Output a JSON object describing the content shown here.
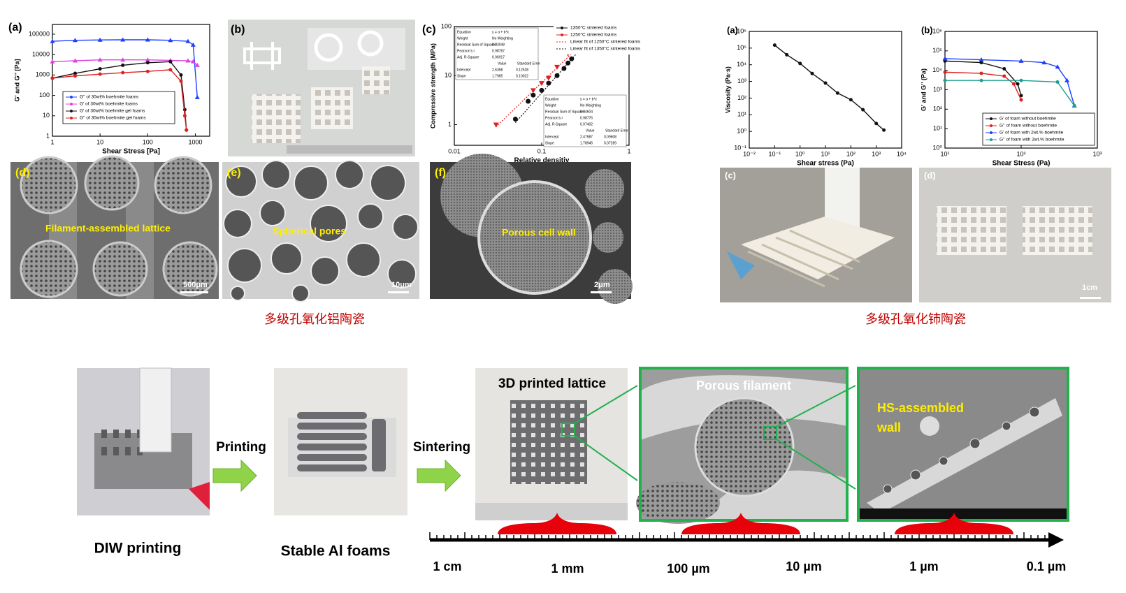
{
  "chart_data": [
    {
      "type": "line",
      "xlabel": "Shear Stress [Pa]",
      "ylabel": "G' and G'' [Pa]",
      "xscale": "log",
      "yscale": "log",
      "xlim": [
        1,
        2000
      ],
      "ylim": [
        1,
        300000
      ],
      "xticks": [
        1,
        10,
        100,
        1000
      ],
      "yticks": [
        1,
        10,
        100,
        1000,
        10000,
        100000
      ],
      "legend": "lower left",
      "series": [
        {
          "name": "G'' of 30wt% boehmite foams",
          "color": "#1f3fff",
          "marker": "triangle",
          "x": [
            1,
            3,
            10,
            30,
            100,
            300,
            700,
            900,
            1100
          ],
          "values": [
            45000,
            50000,
            52000,
            53000,
            53000,
            50000,
            45000,
            30000,
            80
          ]
        },
        {
          "name": "G' of 30wt% boehmite foams",
          "color": "#e040e0",
          "marker": "triangle",
          "x": [
            1,
            3,
            10,
            30,
            100,
            300,
            700,
            900,
            1100
          ],
          "values": [
            4500,
            5000,
            5500,
            5500,
            5500,
            5200,
            5000,
            4500,
            3000
          ]
        },
        {
          "name": "G' of 30wt% boehmite gel foams",
          "color": "#111111",
          "marker": "circle",
          "x": [
            1,
            3,
            10,
            30,
            100,
            300,
            500,
            600,
            650
          ],
          "values": [
            700,
            1200,
            2000,
            3000,
            4000,
            4500,
            1000,
            20,
            2
          ]
        },
        {
          "name": "G'' of 30wt% boehmite gel foams",
          "color": "#e02020",
          "marker": "circle",
          "x": [
            1,
            3,
            10,
            30,
            100,
            300,
            500,
            600,
            650
          ],
          "values": [
            700,
            900,
            1100,
            1300,
            1500,
            1800,
            500,
            10,
            2
          ]
        }
      ]
    },
    {
      "type": "scatter",
      "xlabel": "Relative densitiy",
      "ylabel": "Compressive strength (MPa)",
      "xscale": "log",
      "yscale": "log",
      "xlim": [
        0.01,
        1
      ],
      "ylim": [
        0.38,
        100
      ],
      "xticks": [
        0.01,
        0.1,
        1
      ],
      "yticks": [
        1,
        10,
        100
      ],
      "legend": "upper right",
      "series": [
        {
          "name": "1350°C sintered foams",
          "color": "#111111",
          "marker": "circle",
          "x": [
            0.05,
            0.07,
            0.08,
            0.1,
            0.12,
            0.15,
            0.18,
            0.2,
            0.22
          ],
          "values": [
            1.3,
            3,
            4,
            5,
            7,
            10,
            14,
            18,
            22
          ]
        },
        {
          "name": "1250°C sintered foams",
          "color": "#e02020",
          "marker": "triangle-down",
          "x": [
            0.03,
            0.08,
            0.1,
            0.12,
            0.15,
            0.2
          ],
          "values": [
            1,
            5,
            7,
            9,
            15,
            28
          ]
        },
        {
          "name": "Linear fit of 1250°C sintered foams",
          "color": "#e02020",
          "style": "dotted",
          "x": [
            0.03,
            0.25
          ],
          "values": [
            0.9,
            35
          ]
        },
        {
          "name": "Linear fit of 1350°C sintered foams",
          "color": "#111111",
          "style": "dotted",
          "x": [
            0.05,
            0.25
          ],
          "values": [
            1.1,
            28
          ]
        }
      ],
      "tables": [
        {
          "rows": [
            [
              "Equation",
              "y = a + b*x"
            ],
            [
              "Weight",
              "No Weighting"
            ],
            [
              "Residual Sum of Squares",
              "0.03048"
            ],
            [
              "Pearson's r",
              "0.98767"
            ],
            [
              "Adj. R-Square",
              "0.96917"
            ],
            [
              "Value",
              "Standard Error"
            ],
            [
              "Intercept",
              "2.6358",
              "0.12528"
            ],
            [
              "Slope",
              "1.7965",
              "0.10022"
            ]
          ]
        },
        {
          "rows": [
            [
              "Equation",
              "y = a + b*x"
            ],
            [
              "Weight",
              "No Weighting"
            ],
            [
              "Residual Sum of Squares",
              "0.04604"
            ],
            [
              "Pearson's r",
              "0.98776"
            ],
            [
              "Adj. R-Square",
              "0.97402"
            ],
            [
              "Value",
              "Standard Error"
            ],
            [
              "Intercept",
              "2.47987",
              "0.09608"
            ],
            [
              "Slope",
              "1.78945",
              "0.07289"
            ]
          ]
        }
      ]
    },
    {
      "type": "line",
      "xlabel": "Shear stress (Pa)",
      "ylabel": "Viscosity (Pa·s)",
      "xscale": "log",
      "yscale": "log",
      "xlim": [
        0.01,
        10000
      ],
      "ylim": [
        0.1,
        1000000
      ],
      "xticks": [
        {
          "value": 0.01,
          "label": "10⁻²"
        },
        {
          "value": 0.1,
          "label": "10⁻¹"
        },
        {
          "value": 1,
          "label": "10⁰"
        },
        {
          "value": 10,
          "label": "10¹"
        },
        {
          "value": 100,
          "label": "10²"
        },
        {
          "value": 1000,
          "label": "10³"
        },
        {
          "value": 10000,
          "label": "10⁴"
        }
      ],
      "yticks": [
        {
          "value": 0.1,
          "label": "10⁻¹"
        },
        {
          "value": 1,
          "label": "10⁰"
        },
        {
          "value": 10,
          "label": "10¹"
        },
        {
          "value": 100,
          "label": "10²"
        },
        {
          "value": 1000,
          "label": "10³"
        },
        {
          "value": 10000,
          "label": "10⁴"
        },
        {
          "value": 100000,
          "label": "10⁵"
        },
        {
          "value": 1000000,
          "label": "10⁶"
        }
      ],
      "series": [
        {
          "color": "#111111",
          "marker": "circle",
          "x": [
            0.1,
            0.3,
            1,
            3,
            10,
            30,
            100,
            300,
            1000,
            2000
          ],
          "values": [
            150000,
            40000,
            12000,
            3000,
            800,
            200,
            80,
            20,
            3,
            1.2
          ]
        }
      ]
    },
    {
      "type": "line",
      "xlabel": "Shear Stress (Pa)",
      "ylabel": "G' and G'' (Pa)",
      "xscale": "log",
      "yscale": "log",
      "xlim": [
        10,
        1000
      ],
      "ylim": [
        1,
        1000000
      ],
      "legend": "lower right",
      "xticks": [
        {
          "value": 10,
          "label": "10¹"
        },
        {
          "value": 100,
          "label": "10²"
        },
        {
          "value": 1000,
          "label": "10³"
        }
      ],
      "yticks": [
        {
          "value": 1,
          "label": "10⁰"
        },
        {
          "value": 10,
          "label": "10¹"
        },
        {
          "value": 100,
          "label": "10²"
        },
        {
          "value": 1000,
          "label": "10³"
        },
        {
          "value": 10000,
          "label": "10⁴"
        },
        {
          "value": 100000,
          "label": "10⁵"
        },
        {
          "value": 1000000,
          "label": "10⁶"
        }
      ],
      "series": [
        {
          "name": "G' of foam without boehmite",
          "color": "#111111",
          "marker": "circle",
          "x": [
            10,
            30,
            60,
            90,
            100
          ],
          "values": [
            30000,
            25000,
            12000,
            2000,
            500
          ]
        },
        {
          "name": "G'' of foam without boehmite",
          "color": "#e02020",
          "marker": "circle",
          "x": [
            10,
            30,
            60,
            80,
            100
          ],
          "values": [
            8000,
            7000,
            5000,
            2000,
            300
          ]
        },
        {
          "name": "G' of foam with 2wt.% boehmite",
          "color": "#1f3fff",
          "marker": "triangle",
          "x": [
            10,
            30,
            100,
            200,
            300,
            400,
            500
          ],
          "values": [
            40000,
            35000,
            30000,
            25000,
            15000,
            3000,
            150
          ]
        },
        {
          "name": "G'' of foam with 2wt.% boehmite",
          "color": "#1aa090",
          "marker": "circle",
          "x": [
            10,
            30,
            100,
            300,
            500
          ],
          "values": [
            3000,
            3000,
            3000,
            2500,
            150
          ]
        }
      ]
    }
  ],
  "top_left": {
    "caption": "多级孔氧化铝陶瓷",
    "panels": [
      "(a)",
      "(b)",
      "(c)",
      "(d)",
      "(e)",
      "(f)"
    ],
    "sem_labels": [
      "Filament-assembled lattice",
      "Spherical pores",
      "Porous cell wall"
    ],
    "scale_bars": [
      "500μm",
      "10μm",
      "2μm"
    ]
  },
  "top_right": {
    "caption": "多级孔氧化铈陶瓷",
    "panels": [
      "(a)",
      "(b)",
      "(c)",
      "(d)"
    ],
    "scale_bar": "1cm"
  },
  "bottom": {
    "steps": [
      "DIW printing",
      "Stable Al foams"
    ],
    "arrows": [
      "Printing",
      "Sintering"
    ],
    "images": [
      "3D printed lattice",
      "Porous filament",
      [
        "HS-assembled",
        "wall"
      ]
    ],
    "scale": [
      "1 cm",
      "1 mm",
      "100 µm",
      "10 µm",
      "1 µm",
      "0.1 µm"
    ]
  }
}
